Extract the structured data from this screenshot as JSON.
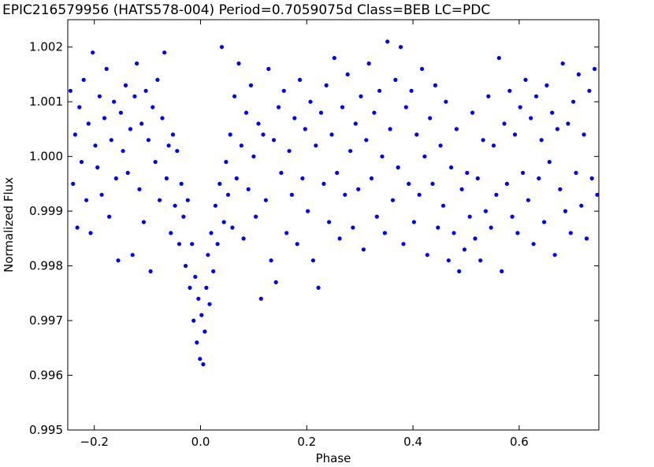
{
  "chart_data": {
    "type": "scatter",
    "title": "EPIC216579956 (HATS578-004)  Period=0.7059075d  Class=BEB  LC=PDC",
    "xlabel": "Phase",
    "ylabel": "Normalized Flux",
    "xlim": [
      -0.25,
      0.75
    ],
    "ylim": [
      0.995,
      1.0025
    ],
    "xticks": [
      -0.2,
      0.0,
      0.2,
      0.4,
      0.6
    ],
    "xtick_labels": [
      "−0.2",
      "0.0",
      "0.2",
      "0.4",
      "0.6"
    ],
    "yticks": [
      0.995,
      0.996,
      0.997,
      0.998,
      0.999,
      1.0,
      1.001,
      1.002
    ],
    "ytick_labels": [
      "0.995",
      "0.996",
      "0.997",
      "0.998",
      "0.999",
      "1.000",
      "1.001",
      "1.002"
    ],
    "grid": false,
    "marker_color": "#0000ff",
    "series": [
      {
        "points": [
          [
            -0.245,
            1.0012
          ],
          [
            -0.24,
            0.9995
          ],
          [
            -0.236,
            1.0004
          ],
          [
            -0.232,
            0.9987
          ],
          [
            -0.228,
            1.0009
          ],
          [
            -0.224,
            0.9999
          ],
          [
            -0.22,
            1.0014
          ],
          [
            -0.215,
            0.9992
          ],
          [
            -0.211,
            1.0006
          ],
          [
            -0.207,
            0.9986
          ],
          [
            -0.203,
            1.0019
          ],
          [
            -0.198,
            1.0002
          ],
          [
            -0.194,
            0.9998
          ],
          [
            -0.19,
            1.0011
          ],
          [
            -0.186,
            0.9993
          ],
          [
            -0.181,
            1.0007
          ],
          [
            -0.177,
            1.0016
          ],
          [
            -0.172,
            0.9989
          ],
          [
            -0.168,
            1.0003
          ],
          [
            -0.163,
            1.001
          ],
          [
            -0.159,
            0.9996
          ],
          [
            -0.155,
            0.9981
          ],
          [
            -0.15,
            1.0008
          ],
          [
            -0.146,
            1.0001
          ],
          [
            -0.141,
            1.0013
          ],
          [
            -0.137,
            0.9997
          ],
          [
            -0.132,
            1.0005
          ],
          [
            -0.128,
            0.9982
          ],
          [
            -0.124,
            1.0011
          ],
          [
            -0.12,
            1.0017
          ],
          [
            -0.115,
            0.9994
          ],
          [
            -0.111,
            1.0006
          ],
          [
            -0.107,
            0.9988
          ],
          [
            -0.103,
            1.0012
          ],
          [
            -0.098,
            1.0003
          ],
          [
            -0.094,
            0.9979
          ],
          [
            -0.09,
            1.0009
          ],
          [
            -0.085,
            0.9999
          ],
          [
            -0.081,
            1.0014
          ],
          [
            -0.077,
            0.9992
          ],
          [
            -0.072,
            1.0007
          ],
          [
            -0.068,
            1.0019
          ],
          [
            -0.064,
            0.9996
          ],
          [
            -0.06,
            1.0002
          ],
          [
            -0.056,
            0.9986
          ],
          [
            -0.052,
            1.0004
          ],
          [
            -0.048,
            0.9991
          ],
          [
            -0.044,
            1.0001
          ],
          [
            -0.04,
            0.9984
          ],
          [
            -0.036,
            0.9995
          ],
          [
            -0.032,
            0.9989
          ],
          [
            -0.028,
            0.998
          ],
          [
            -0.024,
            0.9992
          ],
          [
            -0.02,
            0.9976
          ],
          [
            -0.016,
            0.9984
          ],
          [
            -0.013,
            0.997
          ],
          [
            -0.01,
            0.9978
          ],
          [
            -0.007,
            0.9966
          ],
          [
            -0.004,
            0.9974
          ],
          [
            -0.001,
            0.9963
          ],
          [
            0.002,
            0.9971
          ],
          [
            0.005,
            0.9962
          ],
          [
            0.008,
            0.9968
          ],
          [
            0.011,
            0.9976
          ],
          [
            0.014,
            0.9982
          ],
          [
            0.017,
            0.9973
          ],
          [
            0.02,
            0.9986
          ],
          [
            0.024,
            0.9979
          ],
          [
            0.028,
            0.9991
          ],
          [
            0.032,
            0.9984
          ],
          [
            0.036,
            0.9995
          ],
          [
            0.04,
            1.002
          ],
          [
            0.044,
            0.9988
          ],
          [
            0.048,
            0.9999
          ],
          [
            0.052,
            0.9993
          ],
          [
            0.056,
            1.0004
          ],
          [
            0.06,
            0.9987
          ],
          [
            0.064,
            1.0011
          ],
          [
            0.068,
            0.9996
          ],
          [
            0.072,
            1.0017
          ],
          [
            0.077,
            1.0002
          ],
          [
            0.081,
            0.9985
          ],
          [
            0.086,
            1.0008
          ],
          [
            0.09,
            0.9994
          ],
          [
            0.095,
            1.0013
          ],
          [
            0.1,
            1.0
          ],
          [
            0.104,
            0.9989
          ],
          [
            0.109,
            1.0006
          ],
          [
            0.114,
            0.9974
          ],
          [
            0.118,
            1.0004
          ],
          [
            0.123,
            0.9992
          ],
          [
            0.128,
            1.0016
          ],
          [
            0.133,
            0.9981
          ],
          [
            0.138,
            1.0003
          ],
          [
            0.142,
            0.9977
          ],
          [
            0.147,
            1.0009
          ],
          [
            0.152,
            0.9997
          ],
          [
            0.157,
            1.0012
          ],
          [
            0.162,
            0.9986
          ],
          [
            0.167,
            1.0001
          ],
          [
            0.172,
            0.9993
          ],
          [
            0.177,
            1.0007
          ],
          [
            0.182,
            0.9984
          ],
          [
            0.187,
            1.0014
          ],
          [
            0.192,
            0.9996
          ],
          [
            0.197,
            1.0005
          ],
          [
            0.202,
            0.999
          ],
          [
            0.207,
            1.001
          ],
          [
            0.212,
            0.9981
          ],
          [
            0.217,
            1.0002
          ],
          [
            0.222,
            0.9976
          ],
          [
            0.227,
            1.0008
          ],
          [
            0.232,
            0.9995
          ],
          [
            0.237,
            1.0013
          ],
          [
            0.242,
            0.9988
          ],
          [
            0.247,
            1.0004
          ],
          [
            0.252,
            1.0018
          ],
          [
            0.257,
            0.9997
          ],
          [
            0.262,
            0.9985
          ],
          [
            0.267,
            1.0009
          ],
          [
            0.272,
            0.9993
          ],
          [
            0.277,
            1.0015
          ],
          [
            0.282,
            1.0001
          ],
          [
            0.287,
            0.9987
          ],
          [
            0.292,
            1.0006
          ],
          [
            0.297,
            0.9994
          ],
          [
            0.302,
            1.0011
          ],
          [
            0.307,
            0.9983
          ],
          [
            0.312,
            1.0003
          ],
          [
            0.317,
            1.0017
          ],
          [
            0.322,
            0.9996
          ],
          [
            0.327,
            1.0008
          ],
          [
            0.332,
            0.9989
          ],
          [
            0.337,
            1.0012
          ],
          [
            0.342,
            1.0
          ],
          [
            0.347,
            0.9986
          ],
          [
            0.352,
            1.0021
          ],
          [
            0.357,
            1.0005
          ],
          [
            0.362,
            0.9992
          ],
          [
            0.367,
            1.0014
          ],
          [
            0.372,
            0.9998
          ],
          [
            0.377,
            1.002
          ],
          [
            0.382,
            0.9984
          ],
          [
            0.387,
            1.0009
          ],
          [
            0.392,
            0.9995
          ],
          [
            0.397,
            1.0012
          ],
          [
            0.402,
            0.9988
          ],
          [
            0.407,
            1.0004
          ],
          [
            0.412,
            0.9993
          ],
          [
            0.417,
            1.0016
          ],
          [
            0.422,
            1.0
          ],
          [
            0.427,
            0.9982
          ],
          [
            0.432,
            1.0007
          ],
          [
            0.437,
            0.9995
          ],
          [
            0.442,
            1.0013
          ],
          [
            0.447,
            0.9987
          ],
          [
            0.452,
            1.0002
          ],
          [
            0.457,
            0.9991
          ],
          [
            0.462,
            1.001
          ],
          [
            0.467,
            0.9981
          ],
          [
            0.472,
            0.9998
          ],
          [
            0.477,
            0.9986
          ],
          [
            0.482,
            1.0005
          ],
          [
            0.487,
            0.9979
          ],
          [
            0.492,
            0.9994
          ],
          [
            0.497,
            0.9983
          ],
          [
            0.502,
            0.9997
          ],
          [
            0.507,
            0.9989
          ],
          [
            0.512,
            1.0008
          ],
          [
            0.517,
            0.9985
          ],
          [
            0.522,
            0.9996
          ],
          [
            0.527,
            0.9981
          ],
          [
            0.532,
            1.0003
          ],
          [
            0.537,
            0.999
          ],
          [
            0.542,
            1.0011
          ],
          [
            0.547,
            0.9987
          ],
          [
            0.552,
            1.0002
          ],
          [
            0.557,
            0.9993
          ],
          [
            0.562,
            1.0018
          ],
          [
            0.567,
            0.9979
          ],
          [
            0.572,
            1.0006
          ],
          [
            0.577,
            0.9995
          ],
          [
            0.582,
            1.0012
          ],
          [
            0.587,
            0.9989
          ],
          [
            0.592,
            1.0004
          ],
          [
            0.597,
            0.9986
          ],
          [
            0.602,
            1.0009
          ],
          [
            0.607,
            0.9997
          ],
          [
            0.612,
            1.0014
          ],
          [
            0.617,
            0.9992
          ],
          [
            0.622,
            1.0007
          ],
          [
            0.627,
            0.9984
          ],
          [
            0.632,
            1.0011
          ],
          [
            0.637,
            0.9996
          ],
          [
            0.642,
            1.0003
          ],
          [
            0.647,
            0.9988
          ],
          [
            0.652,
            1.0013
          ],
          [
            0.657,
            0.9999
          ],
          [
            0.662,
            1.0008
          ],
          [
            0.667,
            0.9982
          ],
          [
            0.672,
            1.0005
          ],
          [
            0.677,
            0.9994
          ],
          [
            0.682,
            1.0017
          ],
          [
            0.687,
            0.999
          ],
          [
            0.692,
            1.0006
          ],
          [
            0.697,
            0.9986
          ],
          [
            0.702,
            1.001
          ],
          [
            0.707,
            0.9997
          ],
          [
            0.712,
            1.0015
          ],
          [
            0.717,
            0.9991
          ],
          [
            0.722,
            1.0004
          ],
          [
            0.727,
            0.9985
          ],
          [
            0.732,
            1.0012
          ],
          [
            0.737,
            0.9996
          ],
          [
            0.742,
            1.0016
          ],
          [
            0.747,
            0.9993
          ]
        ]
      }
    ]
  }
}
